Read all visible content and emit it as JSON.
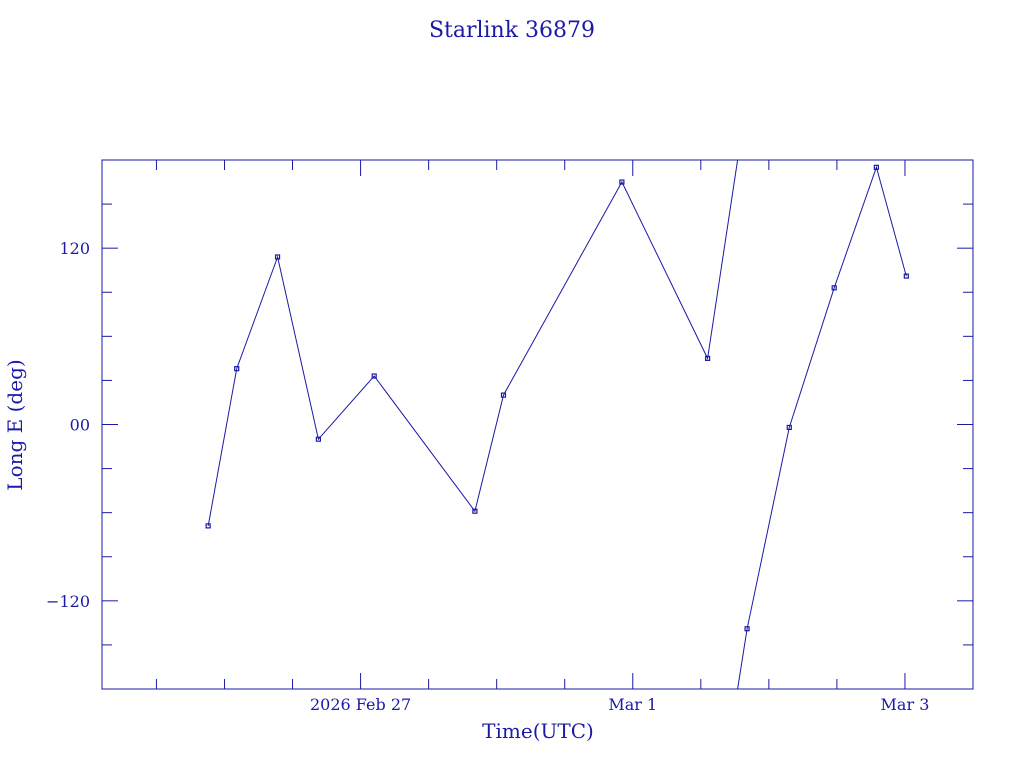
{
  "chart_data": {
    "type": "line",
    "title": "Starlink 36879",
    "xlabel": "Time(UTC)",
    "ylabel": "Long E (deg)",
    "x_unit": "days since 2026-02-26 00:00 UTC",
    "xlim": [
      -0.9,
      5.5
    ],
    "ylim": [
      -180,
      180
    ],
    "x_ticks": [
      {
        "x": 1.0,
        "label": "2026 Feb 27"
      },
      {
        "x": 3.0,
        "label": "Mar  1"
      },
      {
        "x": 5.0,
        "label": "Mar  3"
      }
    ],
    "x_minor_ticks": [
      -0.5,
      0.0,
      0.5,
      1.5,
      2.0,
      2.5,
      3.5,
      4.0,
      4.5
    ],
    "y_ticks": [
      {
        "y": 120,
        "label": "120"
      },
      {
        "y": 0,
        "label": "00"
      },
      {
        "y": -120,
        "label": "−120"
      }
    ],
    "y_minor_ticks": [
      -150,
      -90,
      -60,
      -30,
      30,
      60,
      90,
      150
    ],
    "series": [
      {
        "points": [
          [
            -0.12,
            -69
          ],
          [
            0.09,
            38
          ],
          [
            0.39,
            114
          ],
          [
            0.69,
            -10
          ],
          [
            1.1,
            33
          ],
          [
            1.84,
            -59
          ],
          [
            2.05,
            20
          ],
          [
            2.92,
            165
          ],
          [
            3.55,
            45
          ],
          [
            3.77,
            180
          ],
          [
            3.77,
            -180
          ],
          [
            3.84,
            -139
          ],
          [
            4.15,
            -2
          ],
          [
            4.48,
            93
          ],
          [
            4.79,
            175
          ],
          [
            5.01,
            101
          ]
        ],
        "markers": [
          [
            -0.12,
            -69
          ],
          [
            0.09,
            38
          ],
          [
            0.39,
            114
          ],
          [
            0.69,
            -10
          ],
          [
            1.1,
            33
          ],
          [
            1.84,
            -59
          ],
          [
            2.05,
            20
          ],
          [
            2.92,
            165
          ],
          [
            3.55,
            45
          ],
          [
            3.84,
            -139
          ],
          [
            4.15,
            -2
          ],
          [
            4.48,
            93
          ],
          [
            4.79,
            175
          ],
          [
            5.01,
            101
          ]
        ],
        "break_after_index": 9
      }
    ]
  },
  "colors": {
    "ink": "#1a1aa6",
    "background": "#ffffff"
  }
}
